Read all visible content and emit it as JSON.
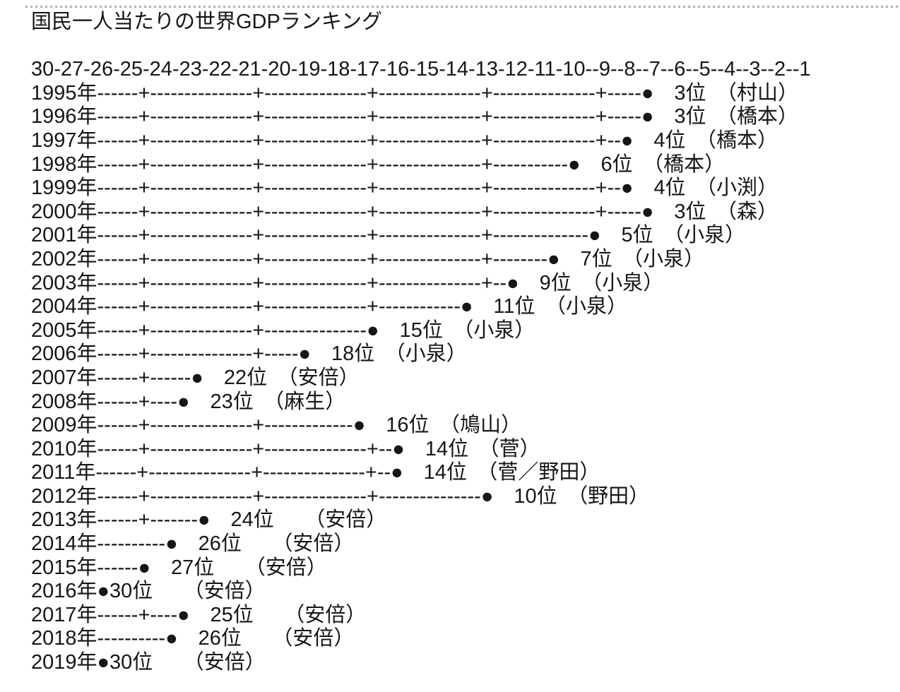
{
  "page": {
    "title": "国民一人当たりの世界GDPランキング"
  },
  "axis": {
    "line": "30-27-26-25-24-23-22-21-20-19-18-17-16-15-14-13-12-11-10--9--8--7--6--5--4--3--2--1"
  },
  "format": {
    "year_suffix": "年",
    "dot": "●",
    "rank_suffix": "位",
    "paren_open": "（",
    "paren_close": "）"
  },
  "rows": [
    {
      "year": "1995",
      "pattern": "------+---------------+---------------+---------------+---------------+-----",
      "dot_gap": "　",
      "rank": "3",
      "rank_gap": "　",
      "pm": "村山"
    },
    {
      "year": "1996",
      "pattern": "------+---------------+---------------+---------------+---------------+-----",
      "dot_gap": "　",
      "rank": "3",
      "rank_gap": "　",
      "pm": "橋本"
    },
    {
      "year": "1997",
      "pattern": "------+---------------+---------------+---------------+---------------+--",
      "dot_gap": "　",
      "rank": "4",
      "rank_gap": "　",
      "pm": "橋本"
    },
    {
      "year": "1998",
      "pattern": "------+---------------+---------------+---------------+-----------",
      "dot_gap": "　",
      "rank": "6",
      "rank_gap": "　",
      "pm": "橋本"
    },
    {
      "year": "1999",
      "pattern": "------+---------------+---------------+---------------+---------------+--",
      "dot_gap": "　",
      "rank": "4",
      "rank_gap": "　",
      "pm": "小渕"
    },
    {
      "year": "2000",
      "pattern": "------+---------------+---------------+---------------+---------------+-----",
      "dot_gap": "　",
      "rank": "3",
      "rank_gap": "　",
      "pm": "森"
    },
    {
      "year": "2001",
      "pattern": "------+---------------+---------------+---------------+--------------",
      "dot_gap": "　",
      "rank": "5",
      "rank_gap": "　",
      "pm": "小泉"
    },
    {
      "year": "2002",
      "pattern": "------+---------------+---------------+---------------+--------",
      "dot_gap": "　",
      "rank": "7",
      "rank_gap": "　",
      "pm": "小泉"
    },
    {
      "year": "2003",
      "pattern": "------+---------------+---------------+---------------+--",
      "dot_gap": "　",
      "rank": "9",
      "rank_gap": "　",
      "pm": "小泉"
    },
    {
      "year": "2004",
      "pattern": "------+---------------+---------------+------------",
      "dot_gap": "　",
      "rank": "11",
      "rank_gap": "　",
      "pm": "小泉"
    },
    {
      "year": "2005",
      "pattern": "------+---------------+---------------",
      "dot_gap": "　",
      "rank": "15",
      "rank_gap": "　",
      "pm": "小泉"
    },
    {
      "year": "2006",
      "pattern": "------+---------------+-----",
      "dot_gap": "　",
      "rank": "18",
      "rank_gap": "　",
      "pm": "小泉"
    },
    {
      "year": "2007",
      "pattern": "------+------",
      "dot_gap": "　",
      "rank": "22",
      "rank_gap": "　",
      "pm": "安倍"
    },
    {
      "year": "2008",
      "pattern": "------+----",
      "dot_gap": "　",
      "rank": "23",
      "rank_gap": "　",
      "pm": "麻生"
    },
    {
      "year": "2009",
      "pattern": "------+---------------+-------------",
      "dot_gap": "　",
      "rank": "16",
      "rank_gap": "　",
      "pm": "鳩山"
    },
    {
      "year": "2010",
      "pattern": "------+---------------+---------------+--",
      "dot_gap": "　",
      "rank": "14",
      "rank_gap": "　",
      "pm": "菅"
    },
    {
      "year": "2011",
      "pattern": "------+---------------+---------------+--",
      "dot_gap": "　",
      "rank": "14",
      "rank_gap": "　",
      "pm": "菅／野田"
    },
    {
      "year": "2012",
      "pattern": "------+---------------+---------------+---------------",
      "dot_gap": "　",
      "rank": "10",
      "rank_gap": "　",
      "pm": "野田"
    },
    {
      "year": "2013",
      "pattern": "------+-------",
      "dot_gap": "　",
      "rank": "24",
      "rank_gap": "　　",
      "pm": "安倍"
    },
    {
      "year": "2014",
      "pattern": "----------",
      "dot_gap": "　",
      "rank": "26",
      "rank_gap": "　　",
      "pm": "安倍"
    },
    {
      "year": "2015",
      "pattern": "------",
      "dot_gap": "　",
      "rank": "27",
      "rank_gap": "　　",
      "pm": "安倍"
    },
    {
      "year": "2016",
      "pattern": "",
      "dot_gap": "",
      "rank": "30",
      "rank_gap": "　　",
      "pm": "安倍"
    },
    {
      "year": "2017",
      "pattern": "------+----",
      "dot_gap": "　",
      "rank": "25",
      "rank_gap": "　　",
      "pm": "安倍"
    },
    {
      "year": "2018",
      "pattern": "----------",
      "dot_gap": "　",
      "rank": "26",
      "rank_gap": "　　",
      "pm": "安倍"
    },
    {
      "year": "2019",
      "pattern": "",
      "dot_gap": "",
      "rank": "30",
      "rank_gap": "　　",
      "pm": "安倍"
    }
  ],
  "chart_data": {
    "type": "scatter",
    "title": "国民一人当たりの世界GDPランキング",
    "orientation": "horizontal-rank-per-year",
    "rank_axis_ticks": [
      30,
      27,
      26,
      25,
      24,
      23,
      22,
      21,
      20,
      19,
      18,
      17,
      16,
      15,
      14,
      13,
      12,
      11,
      10,
      9,
      8,
      7,
      6,
      5,
      4,
      3,
      2,
      1
    ],
    "rank_axis_range": [
      30,
      1
    ],
    "categories": [
      1995,
      1996,
      1997,
      1998,
      1999,
      2000,
      2001,
      2002,
      2003,
      2004,
      2005,
      2006,
      2007,
      2008,
      2009,
      2010,
      2011,
      2012,
      2013,
      2014,
      2015,
      2016,
      2017,
      2018,
      2019
    ],
    "values": [
      3,
      3,
      4,
      6,
      4,
      3,
      5,
      7,
      9,
      11,
      15,
      18,
      22,
      23,
      16,
      14,
      14,
      10,
      24,
      26,
      27,
      30,
      25,
      26,
      30
    ],
    "annotations": [
      "村山",
      "橋本",
      "橋本",
      "橋本",
      "小渕",
      "森",
      "小泉",
      "小泉",
      "小泉",
      "小泉",
      "小泉",
      "小泉",
      "安倍",
      "麻生",
      "鳩山",
      "菅",
      "菅／野田",
      "野田",
      "安倍",
      "安倍",
      "安倍",
      "安倍",
      "安倍",
      "安倍",
      "安倍"
    ],
    "marker": "●",
    "grid_marker": "+",
    "legend": "none"
  }
}
